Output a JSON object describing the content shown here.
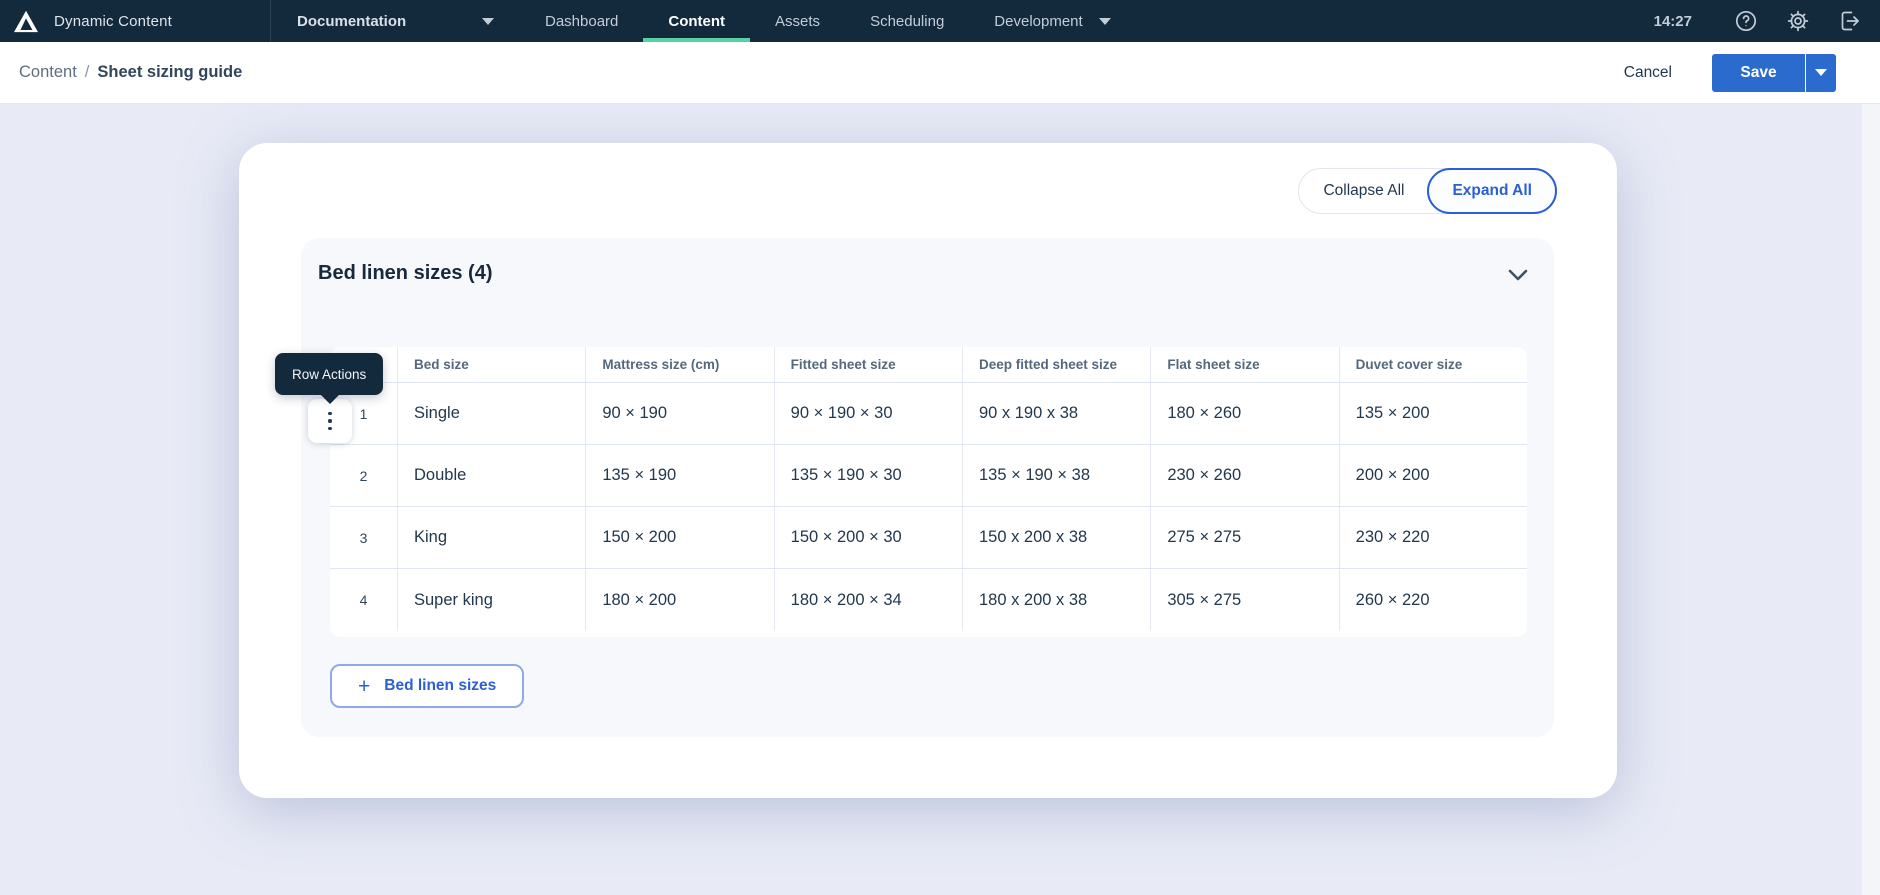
{
  "nav": {
    "app_title": "Dynamic Content",
    "time": "14:27",
    "items": [
      {
        "label": "Documentation",
        "dropdown": true,
        "active": false
      },
      {
        "label": "Dashboard",
        "dropdown": false,
        "active": false
      },
      {
        "label": "Content",
        "dropdown": false,
        "active": true
      },
      {
        "label": "Assets",
        "dropdown": false,
        "active": false
      },
      {
        "label": "Scheduling",
        "dropdown": false,
        "active": false
      },
      {
        "label": "Development",
        "dropdown": true,
        "active": false
      }
    ],
    "icons": [
      "help-icon",
      "settings-icon",
      "logout-icon"
    ]
  },
  "toolbar": {
    "breadcrumb": {
      "parent": "Content",
      "separator": "/",
      "current": "Sheet sizing guide"
    },
    "cancel_label": "Cancel",
    "save_label": "Save"
  },
  "content": {
    "collapse_all_label": "Collapse All",
    "expand_all_label": "Expand All",
    "section": {
      "title": "Bed linen sizes (4)",
      "row_actions_tooltip": "Row Actions",
      "add_button_label": "Bed linen sizes",
      "add_button_glyph": "+",
      "table": {
        "columns": [
          "Bed size",
          "Mattress size (cm)",
          "Fitted sheet size",
          "Deep fitted sheet size",
          "Flat sheet size",
          "Duvet cover size"
        ],
        "rows": [
          {
            "num": "1",
            "cells": [
              "Single",
              "90 × 190",
              "90 × 190 × 30",
              "90 x 190 x 38",
              "180 × 260",
              "135 × 200"
            ]
          },
          {
            "num": "2",
            "cells": [
              "Double",
              "135 × 190",
              "135 × 190 × 30",
              "135 × 190 × 38",
              "230 × 260",
              "200 × 200"
            ]
          },
          {
            "num": "3",
            "cells": [
              "King",
              "150 × 200",
              "150 × 200 × 30",
              "150 x 200 x 38",
              "275 × 275",
              "230 × 220"
            ]
          },
          {
            "num": "4",
            "cells": [
              "Super king",
              "180 × 200",
              "180 × 200 × 34",
              "180 x 200 x 38",
              "305 × 275",
              "260 × 220"
            ]
          }
        ]
      }
    }
  },
  "colors": {
    "nav_bg": "#13293C",
    "accent_underline": "#55D1A4",
    "primary_blue": "#2C6BCE",
    "action_blue": "#2A60D4",
    "page_bg": "#E8EBF6",
    "section_bg": "#F7F8FB",
    "tooltip_bg": "#13293C"
  }
}
